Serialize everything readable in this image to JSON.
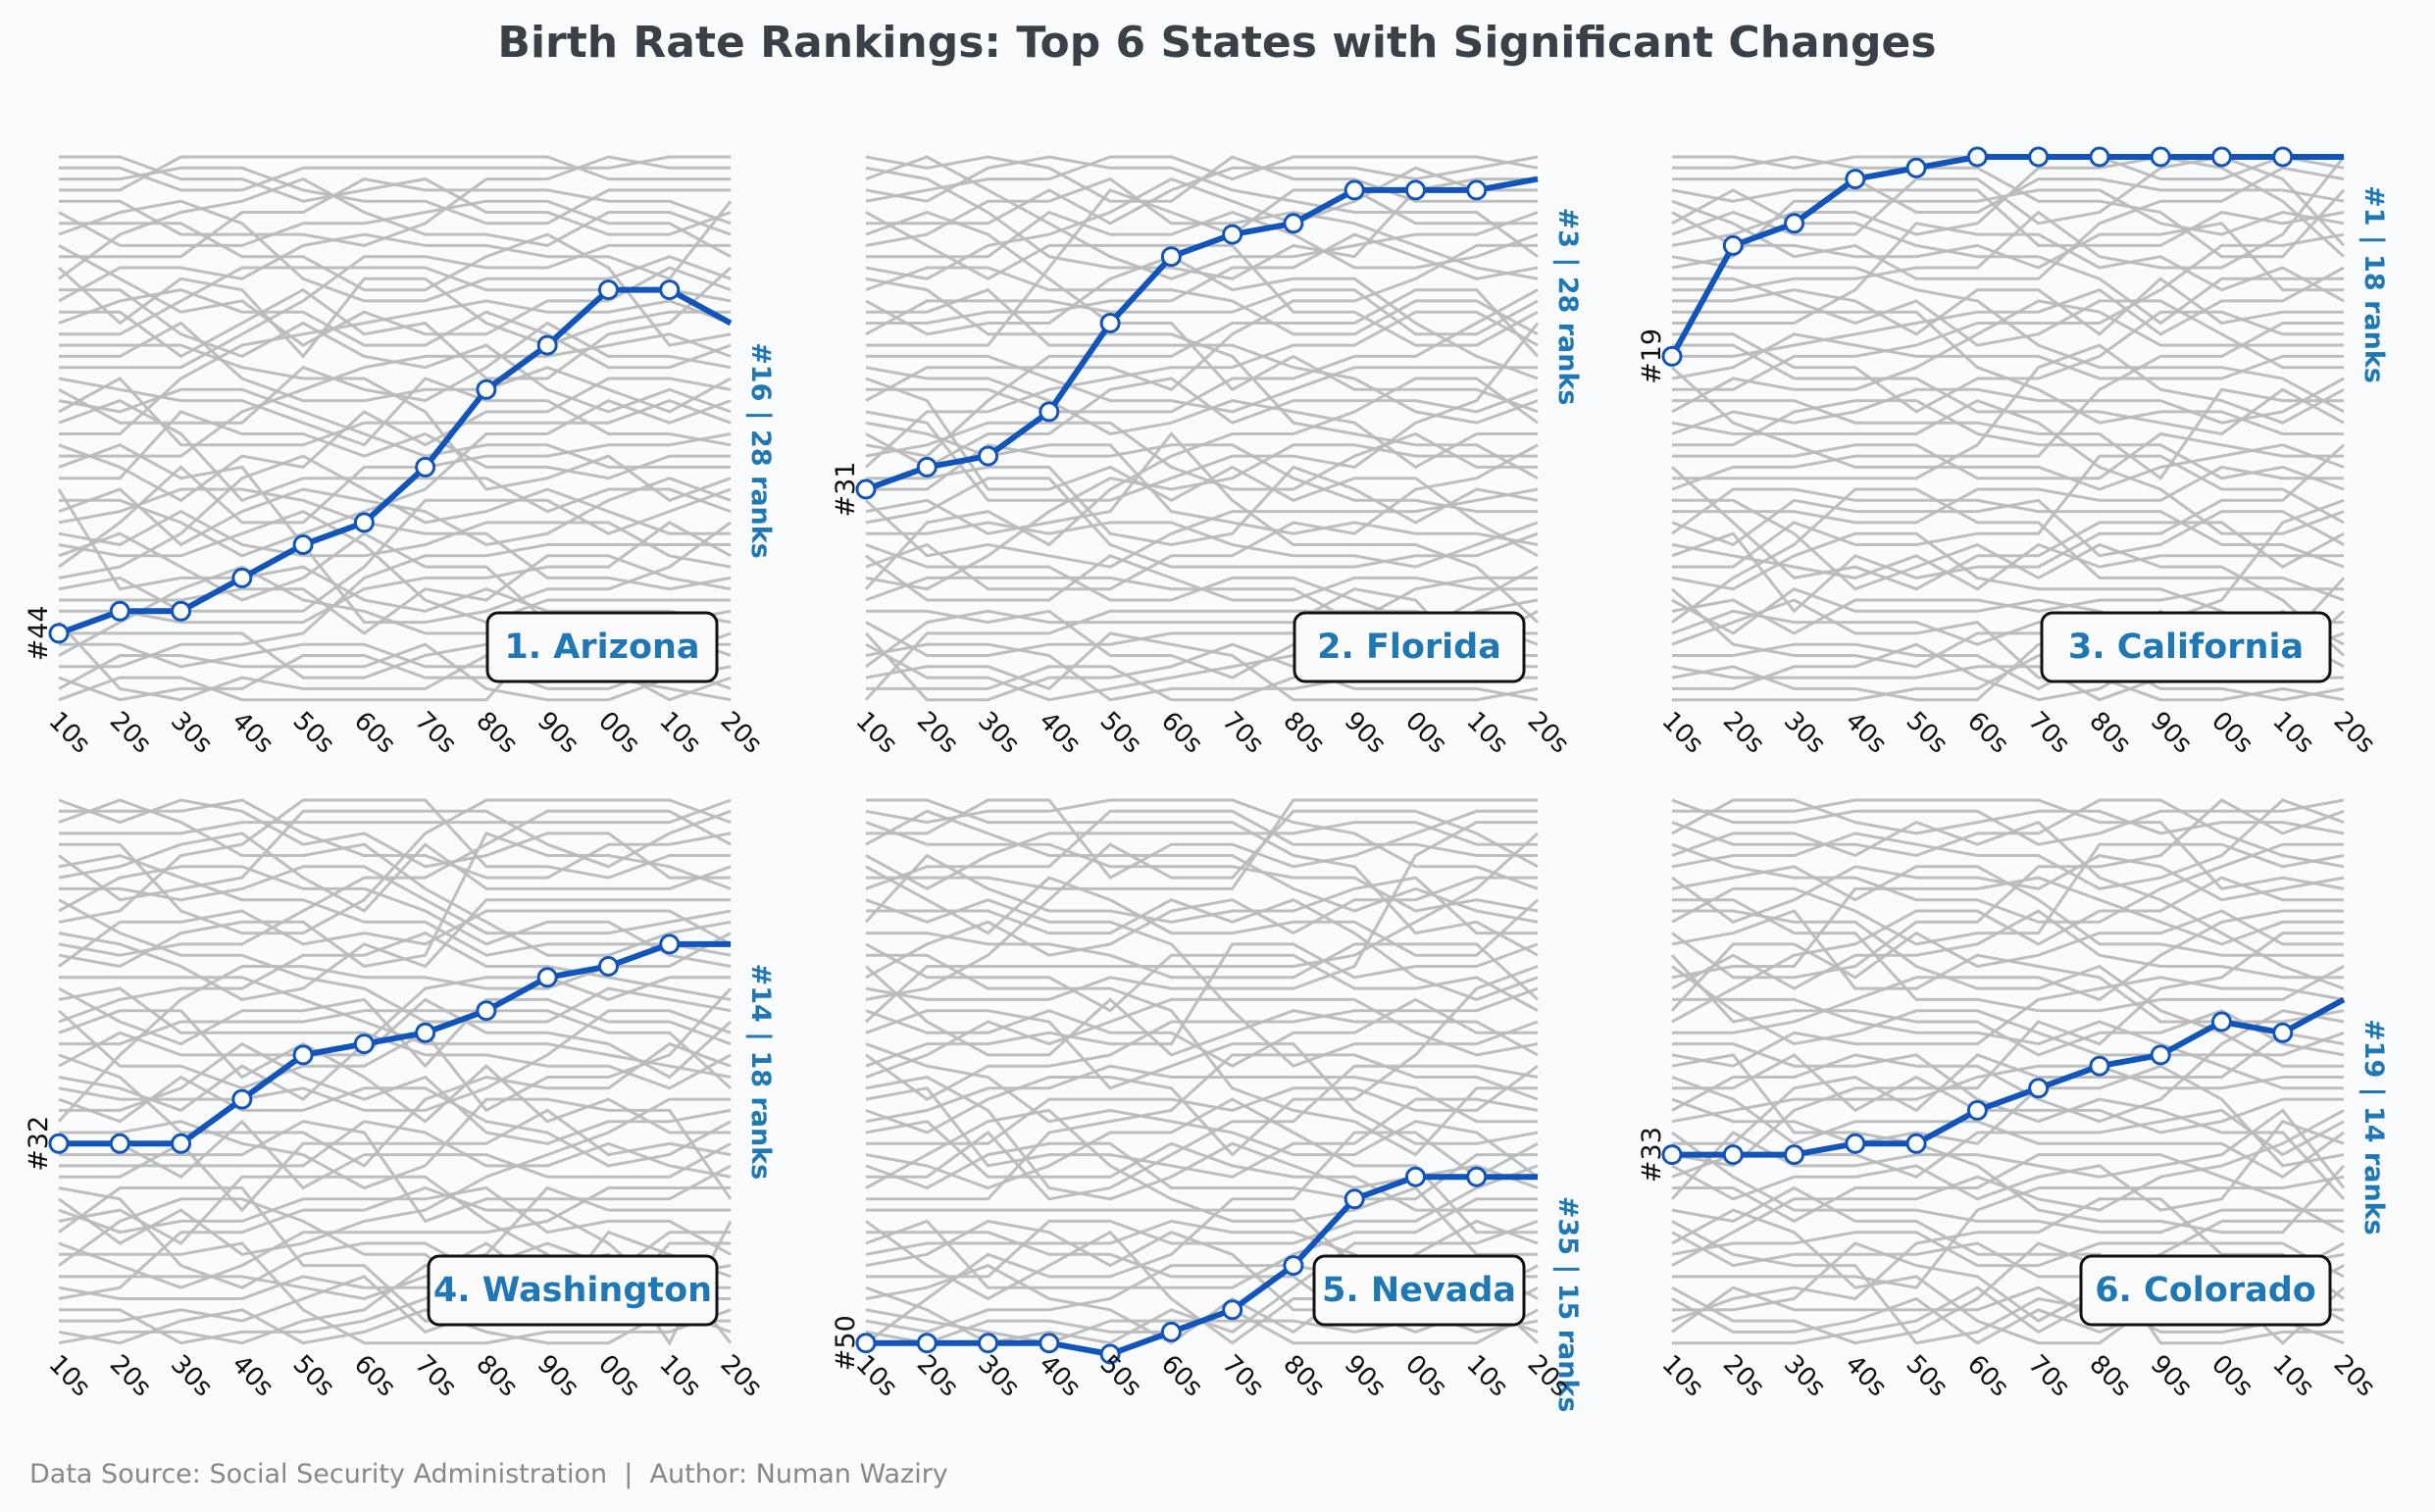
{
  "title": "Birth Rate Rankings: Top 6 States with Significant Changes",
  "footer": "Data Source: Social Security Administration  |  Author: Numan Waziry",
  "colors": {
    "background": "#fafbfc",
    "highlight_line": "#1155bb",
    "label_text": "#1f77b4",
    "context_lines": "#bbbbbb",
    "title_text": "#3a4048",
    "footer_text": "#888888"
  },
  "chart_data": [
    {
      "type": "line",
      "panel_label": "1. Arizona",
      "x": [
        "10s",
        "20s",
        "30s",
        "40s",
        "50s",
        "60s",
        "70s",
        "80s",
        "90s",
        "00s",
        "10s",
        "20s"
      ],
      "highlight_ranks": [
        44,
        42,
        42,
        39,
        36,
        34,
        29,
        22,
        18,
        13,
        13,
        16
      ],
      "start_label": "#44",
      "end_label": "#16 | 28 ranks",
      "ylim": [
        1,
        51
      ],
      "grid": false
    },
    {
      "type": "line",
      "panel_label": "2. Florida",
      "x": [
        "10s",
        "20s",
        "30s",
        "40s",
        "50s",
        "60s",
        "70s",
        "80s",
        "90s",
        "00s",
        "10s",
        "20s"
      ],
      "highlight_ranks": [
        31,
        29,
        28,
        24,
        16,
        10,
        8,
        7,
        4,
        4,
        4,
        3
      ],
      "start_label": "#31",
      "end_label": "#3 | 28 ranks",
      "ylim": [
        1,
        51
      ],
      "grid": false
    },
    {
      "type": "line",
      "panel_label": "3. California",
      "x": [
        "10s",
        "20s",
        "30s",
        "40s",
        "50s",
        "60s",
        "70s",
        "80s",
        "90s",
        "00s",
        "10s",
        "20s"
      ],
      "highlight_ranks": [
        19,
        9,
        7,
        3,
        2,
        1,
        1,
        1,
        1,
        1,
        1,
        1
      ],
      "start_label": "#19",
      "end_label": "#1 | 18 ranks",
      "ylim": [
        1,
        51
      ],
      "grid": false
    },
    {
      "type": "line",
      "panel_label": "4. Washington",
      "x": [
        "10s",
        "20s",
        "30s",
        "40s",
        "50s",
        "60s",
        "70s",
        "80s",
        "90s",
        "00s",
        "10s",
        "20s"
      ],
      "highlight_ranks": [
        32,
        32,
        32,
        28,
        24,
        23,
        22,
        20,
        17,
        16,
        14,
        14
      ],
      "start_label": "#32",
      "end_label": "#14 | 18 ranks",
      "ylim": [
        1,
        51
      ],
      "grid": false
    },
    {
      "type": "line",
      "panel_label": "5. Nevada",
      "x": [
        "10s",
        "20s",
        "30s",
        "40s",
        "50s",
        "60s",
        "70s",
        "80s",
        "90s",
        "00s",
        "10s",
        "20s"
      ],
      "highlight_ranks": [
        50,
        50,
        50,
        50,
        51,
        49,
        47,
        43,
        37,
        35,
        35,
        35
      ],
      "start_label": "#50",
      "end_label": "#35 | 15 ranks",
      "ylim": [
        1,
        51
      ],
      "grid": false
    },
    {
      "type": "line",
      "panel_label": "6. Colorado",
      "x": [
        "10s",
        "20s",
        "30s",
        "40s",
        "50s",
        "60s",
        "70s",
        "80s",
        "90s",
        "00s",
        "10s",
        "20s"
      ],
      "highlight_ranks": [
        33,
        33,
        33,
        32,
        32,
        29,
        27,
        25,
        24,
        21,
        22,
        19
      ],
      "start_label": "#33",
      "end_label": "#19 | 14 ranks",
      "ylim": [
        1,
        51
      ],
      "grid": false
    }
  ]
}
